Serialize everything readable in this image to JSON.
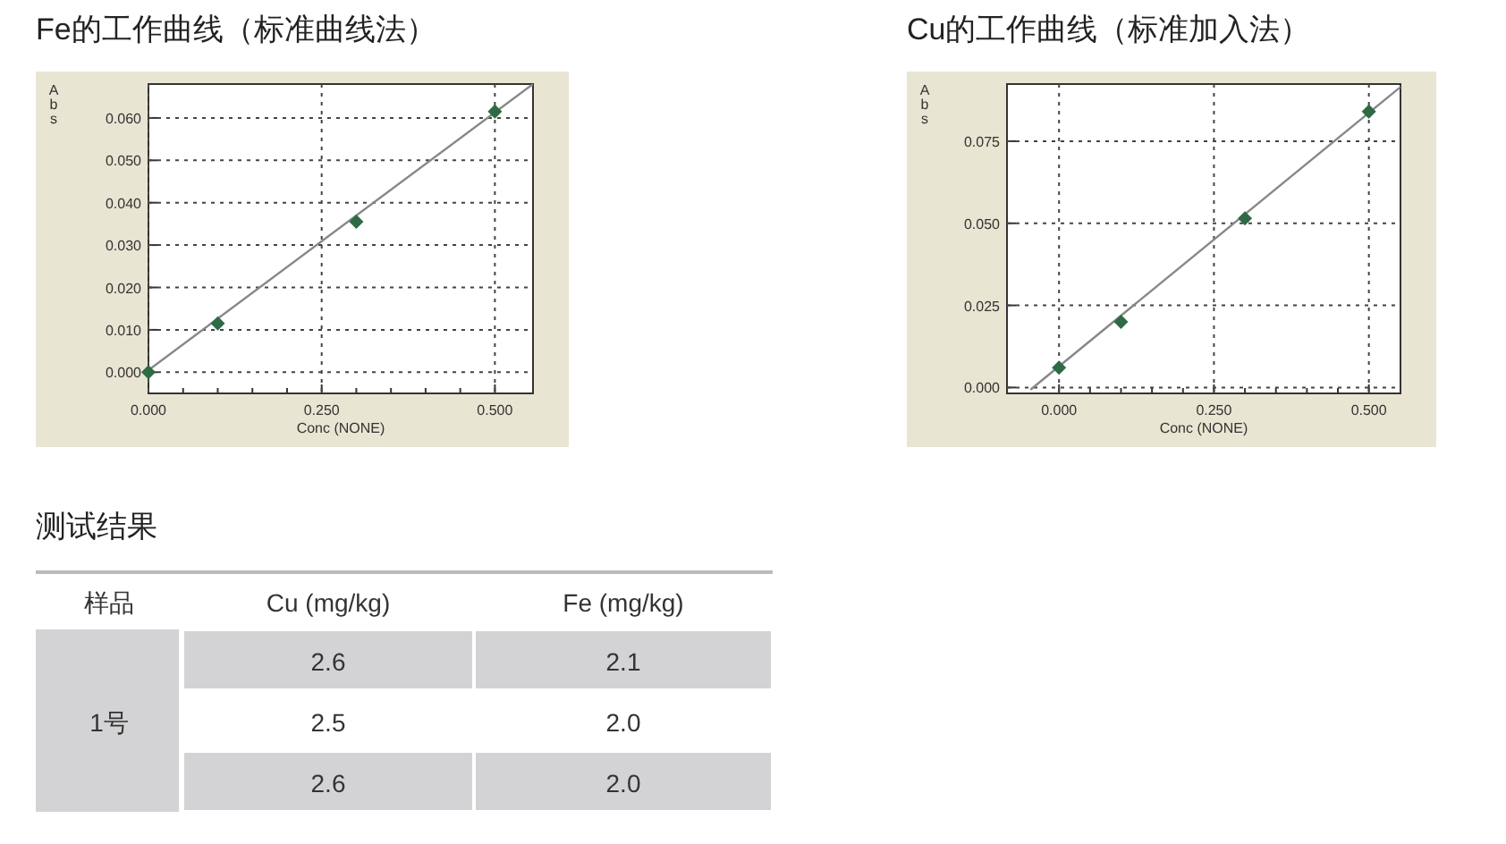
{
  "chart_data": [
    {
      "type": "scatter",
      "title": "Fe的工作曲线（标准曲线法）",
      "xlabel": "Conc (NONE)",
      "ylabel": "Abs",
      "grid": true,
      "x": [
        0,
        0.1,
        0.3,
        0.5
      ],
      "series": [
        {
          "type": "scatter",
          "color": "#2e6b45",
          "marker": "diamond",
          "values": [
            0,
            0.0115,
            0.0355,
            0.0615
          ]
        },
        {
          "type": "line",
          "color": "#888888",
          "line_style": "solid",
          "marker": "none",
          "x": [
            0,
            0.555
          ],
          "values": [
            0.0005,
            0.068
          ]
        }
      ],
      "xlim": [
        0,
        0.555
      ],
      "ylim": [
        -0.005,
        0.068
      ],
      "xticks": [
        {
          "value": 0,
          "label": "0.000"
        },
        {
          "value": 0.05,
          "label": null
        },
        {
          "value": 0.1,
          "label": null
        },
        {
          "value": 0.15,
          "label": null
        },
        {
          "value": 0.2,
          "label": null
        },
        {
          "value": 0.25,
          "label": "0.250"
        },
        {
          "value": 0.3,
          "label": null
        },
        {
          "value": 0.35,
          "label": null
        },
        {
          "value": 0.4,
          "label": null
        },
        {
          "value": 0.45,
          "label": null
        },
        {
          "value": 0.5,
          "label": "0.500"
        }
      ],
      "yticks": [
        {
          "value": 0,
          "label": "0.000"
        },
        {
          "value": 0.01,
          "label": "0.010"
        },
        {
          "value": 0.02,
          "label": "0.020"
        },
        {
          "value": 0.03,
          "label": "0.030"
        },
        {
          "value": 0.04,
          "label": "0.040"
        },
        {
          "value": 0.05,
          "label": "0.050"
        },
        {
          "value": 0.06,
          "label": "0.060"
        }
      ]
    },
    {
      "type": "scatter",
      "title": "Cu的工作曲线（标准加入法）",
      "xlabel": "Conc (NONE)",
      "ylabel": "Abs",
      "grid": true,
      "x": [
        0,
        0.1,
        0.3,
        0.5
      ],
      "series": [
        {
          "type": "scatter",
          "color": "#2e6b45",
          "marker": "diamond",
          "values": [
            0.006,
            0.02,
            0.0515,
            0.084
          ]
        },
        {
          "type": "line",
          "color": "#888888",
          "line_style": "solid",
          "marker": "none",
          "x": [
            -0.045,
            0.551
          ],
          "values": [
            -0.0005,
            0.0915
          ]
        }
      ],
      "xlim": [
        -0.084,
        0.551
      ],
      "ylim": [
        -0.0018,
        0.0924
      ],
      "xticks": [
        {
          "value": 0,
          "label": "0.000"
        },
        {
          "value": 0.05,
          "label": null
        },
        {
          "value": 0.1,
          "label": null
        },
        {
          "value": 0.15,
          "label": null
        },
        {
          "value": 0.2,
          "label": null
        },
        {
          "value": 0.25,
          "label": "0.250"
        },
        {
          "value": 0.3,
          "label": null
        },
        {
          "value": 0.35,
          "label": null
        },
        {
          "value": 0.4,
          "label": null
        },
        {
          "value": 0.45,
          "label": null
        },
        {
          "value": 0.5,
          "label": "0.500"
        }
      ],
      "yticks": [
        {
          "value": 0,
          "label": "0.000"
        },
        {
          "value": 0.025,
          "label": "0.025"
        },
        {
          "value": 0.05,
          "label": "0.050"
        },
        {
          "value": 0.075,
          "label": "0.075"
        }
      ]
    },
    {
      "type": "other",
      "title": "测试结果",
      "annotations": [
        "样品",
        "Cu (mg/kg)",
        "Fe (mg/kg)",
        "1号",
        "2.6",
        "2.1",
        "2.5",
        "2.0",
        "2.6",
        "2.0"
      ]
    }
  ]
}
